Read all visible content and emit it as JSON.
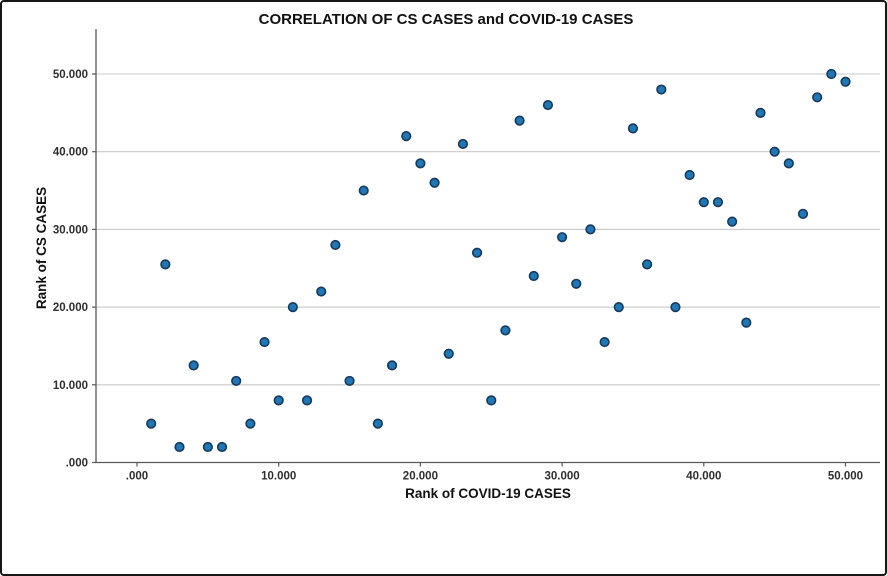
{
  "chart_data": {
    "type": "scatter",
    "title": "CORRELATION OF CS CASES and COVID-19 CASES",
    "xlabel": "Rank of COVID-19 CASES",
    "ylabel": "Rank of CS CASES",
    "xlim": [
      -3,
      52.5
    ],
    "ylim": [
      0,
      55
    ],
    "x_ticks": [
      0,
      10,
      20,
      30,
      40,
      50
    ],
    "x_tick_labels": [
      ".000",
      "10.000",
      "20.000",
      "30.000",
      "40.000",
      "50.000"
    ],
    "y_ticks": [
      0,
      10,
      20,
      30,
      40,
      50
    ],
    "y_tick_labels": [
      ".000",
      "10.000",
      "20.000",
      "30.000",
      "40.000",
      "50.000"
    ],
    "grid": "horizontal-only",
    "legend": "none",
    "points": [
      [
        1,
        5
      ],
      [
        2,
        25.5
      ],
      [
        3,
        2
      ],
      [
        4,
        12.5
      ],
      [
        5,
        2
      ],
      [
        6,
        2
      ],
      [
        7,
        10.5
      ],
      [
        8,
        5
      ],
      [
        9,
        15.5
      ],
      [
        10,
        8
      ],
      [
        11,
        20
      ],
      [
        12,
        8
      ],
      [
        13,
        22
      ],
      [
        14,
        28
      ],
      [
        15,
        10.5
      ],
      [
        16,
        35
      ],
      [
        17,
        5
      ],
      [
        18,
        12.5
      ],
      [
        19,
        42
      ],
      [
        20,
        38.5
      ],
      [
        21,
        36
      ],
      [
        22,
        14
      ],
      [
        23,
        41
      ],
      [
        24,
        27
      ],
      [
        25,
        8
      ],
      [
        26,
        17
      ],
      [
        27,
        44
      ],
      [
        28,
        24
      ],
      [
        29,
        46
      ],
      [
        30,
        29
      ],
      [
        31,
        23
      ],
      [
        32,
        30
      ],
      [
        33,
        15.5
      ],
      [
        34,
        20
      ],
      [
        35,
        43
      ],
      [
        36,
        25.5
      ],
      [
        37,
        48
      ],
      [
        38,
        20
      ],
      [
        39,
        37
      ],
      [
        40,
        33.5
      ],
      [
        41,
        33.5
      ],
      [
        42,
        31
      ],
      [
        43,
        18
      ],
      [
        44,
        45
      ],
      [
        45,
        40
      ],
      [
        46,
        38.5
      ],
      [
        47,
        32
      ],
      [
        48,
        47
      ],
      [
        49,
        50
      ],
      [
        50,
        49
      ]
    ],
    "colors": {
      "point_fill": "#1f77b4",
      "point_stroke": "#16395f",
      "gridline": "#c9c9c9",
      "axis": "#595959"
    }
  }
}
